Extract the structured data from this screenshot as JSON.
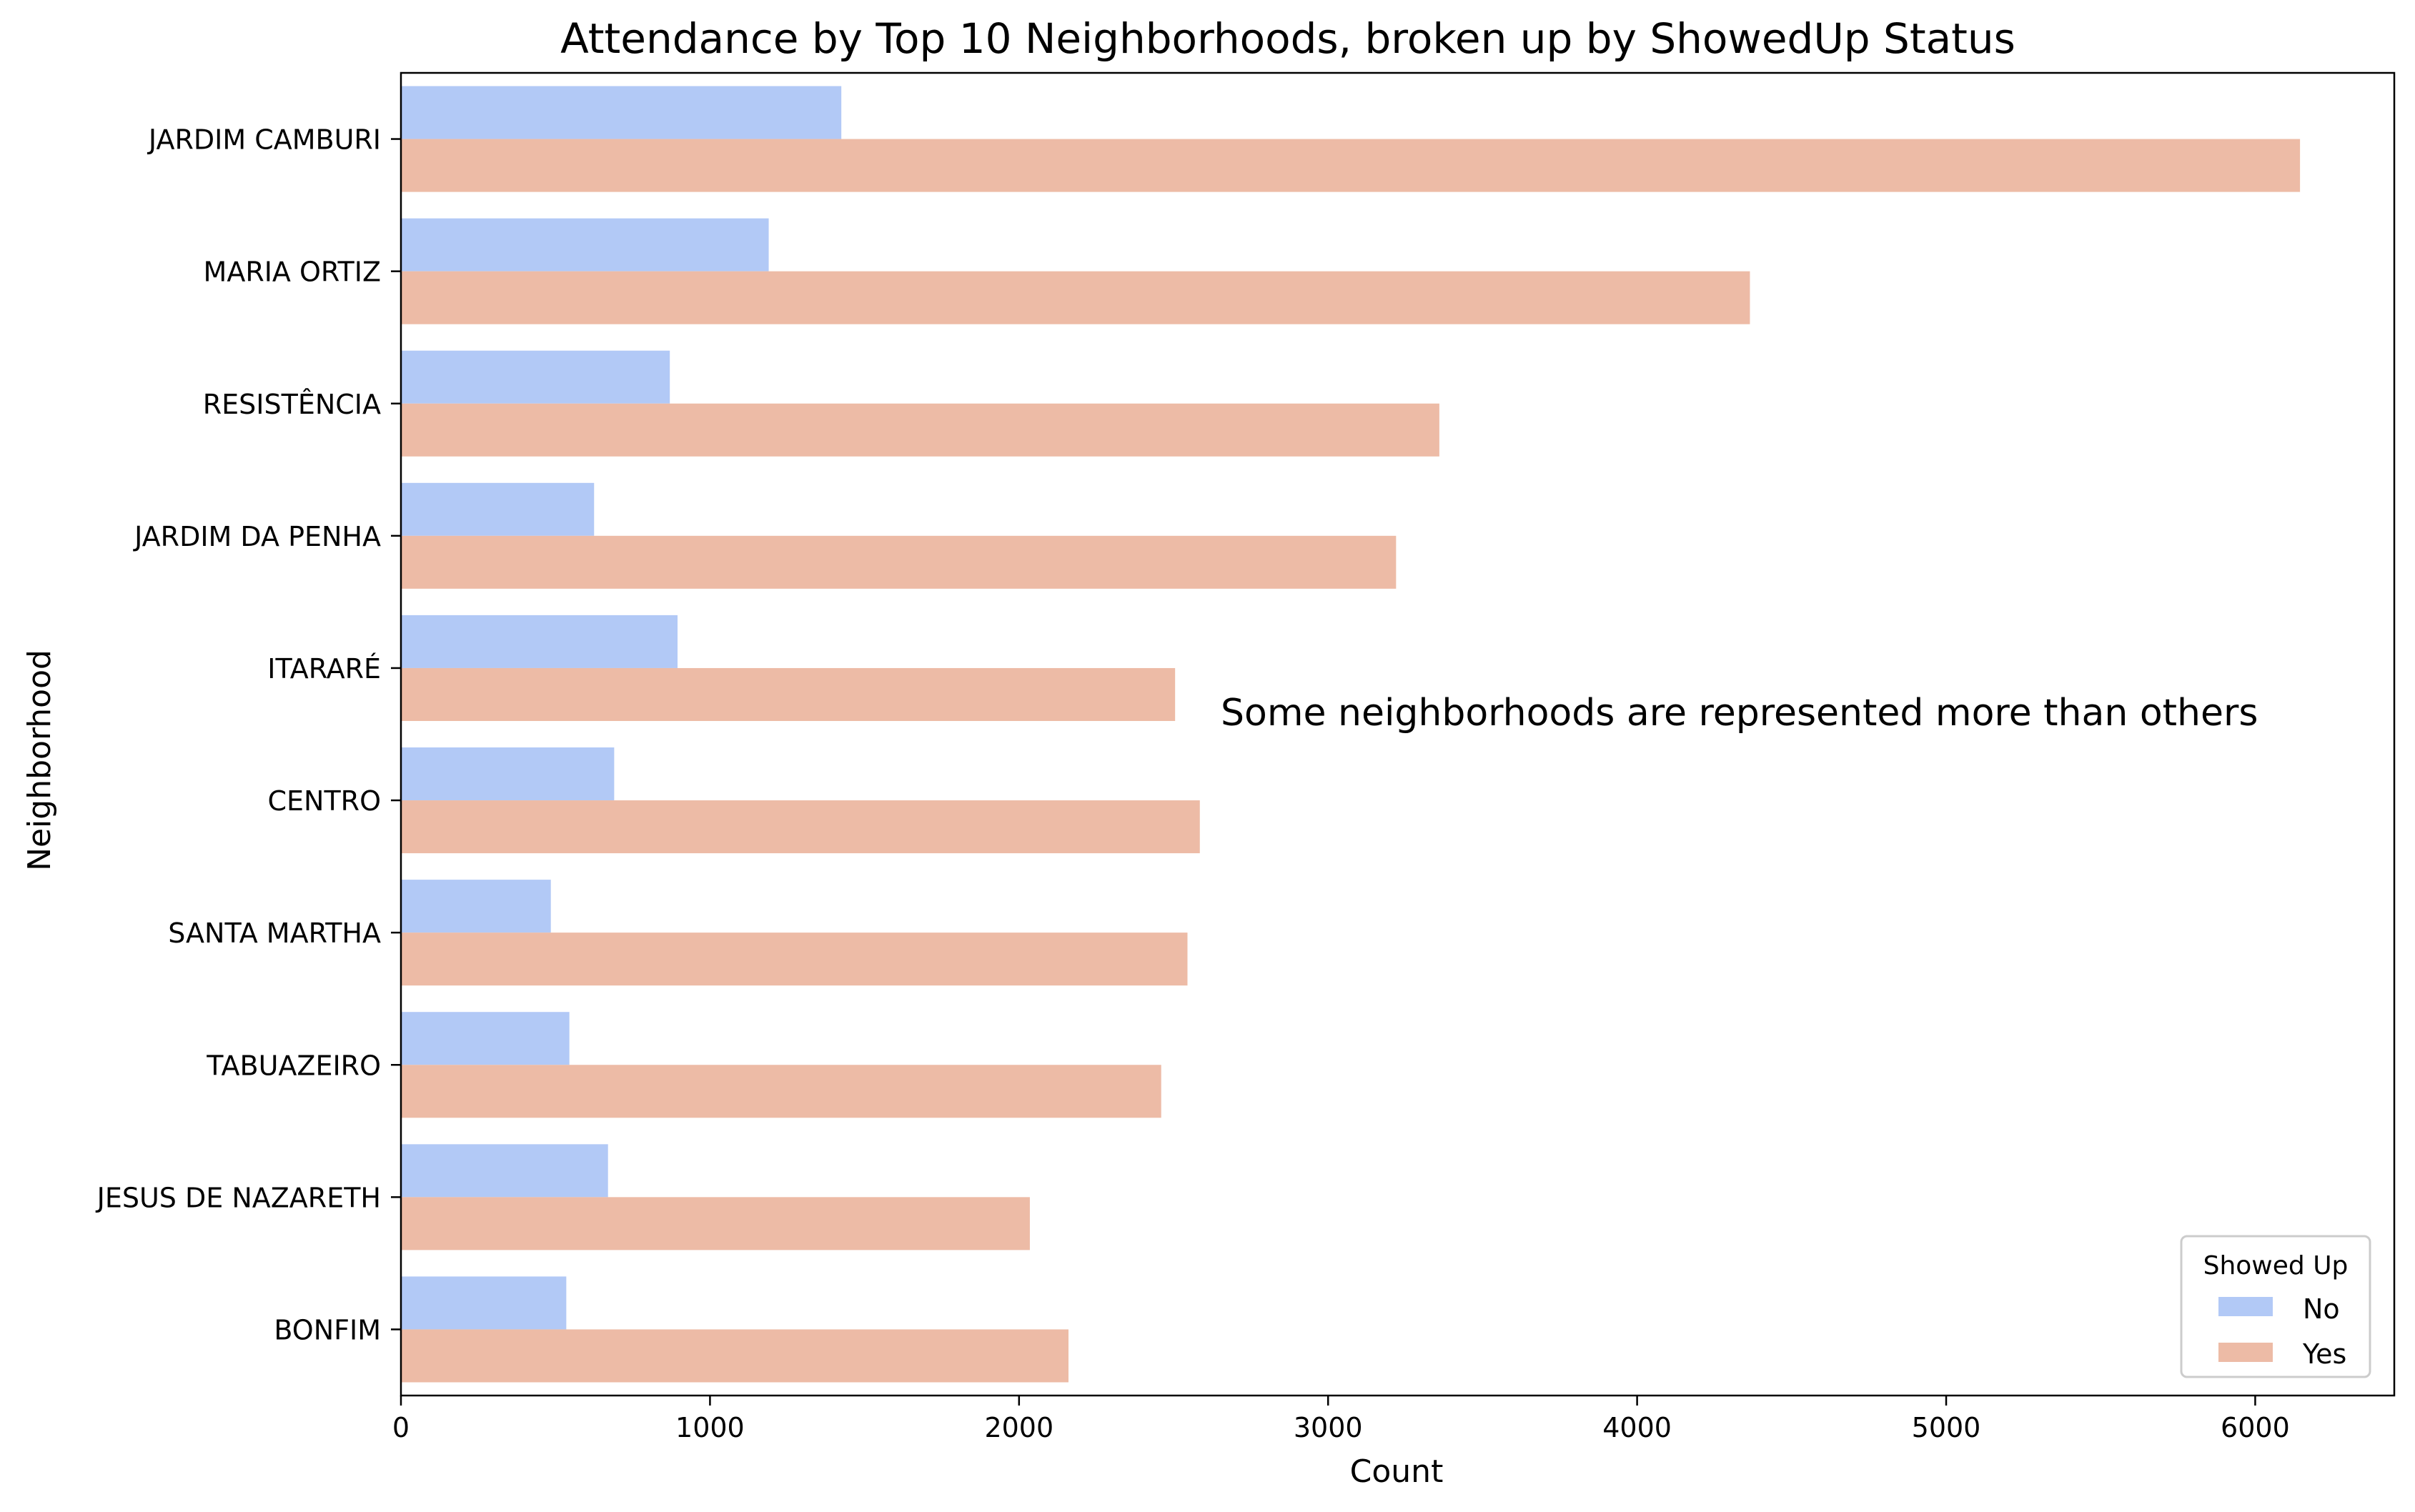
{
  "chart_data": {
    "type": "bar",
    "orientation": "horizontal",
    "title": "Attendance by Top 10 Neighborhoods, broken up by ShowedUp Status",
    "xlabel": "Count",
    "ylabel": "Neighborhood",
    "xlim": [
      0,
      6450
    ],
    "xticks": [
      0,
      1000,
      2000,
      3000,
      4000,
      5000,
      6000
    ],
    "grid": false,
    "categories": [
      "JARDIM CAMBURI",
      "MARIA ORTIZ",
      "RESISTÊNCIA",
      "JARDIM DA PENHA",
      "ITARARÉ",
      "CENTRO",
      "SANTA MARTHA",
      "TABUAZEIRO",
      "JESUS DE NAZARETH",
      "BONFIM"
    ],
    "series": [
      {
        "name": "No",
        "color": "#b2c9f6",
        "values": [
          1425,
          1190,
          870,
          625,
          895,
          690,
          485,
          545,
          670,
          535
        ]
      },
      {
        "name": "Yes",
        "color": "#edbba6",
        "values": [
          6145,
          4365,
          3360,
          3220,
          2505,
          2585,
          2545,
          2460,
          2035,
          2160
        ]
      }
    ],
    "legend": {
      "title": "Showed Up",
      "location": "lower right"
    },
    "annotation": "Some neighborhoods are represented more than others"
  }
}
